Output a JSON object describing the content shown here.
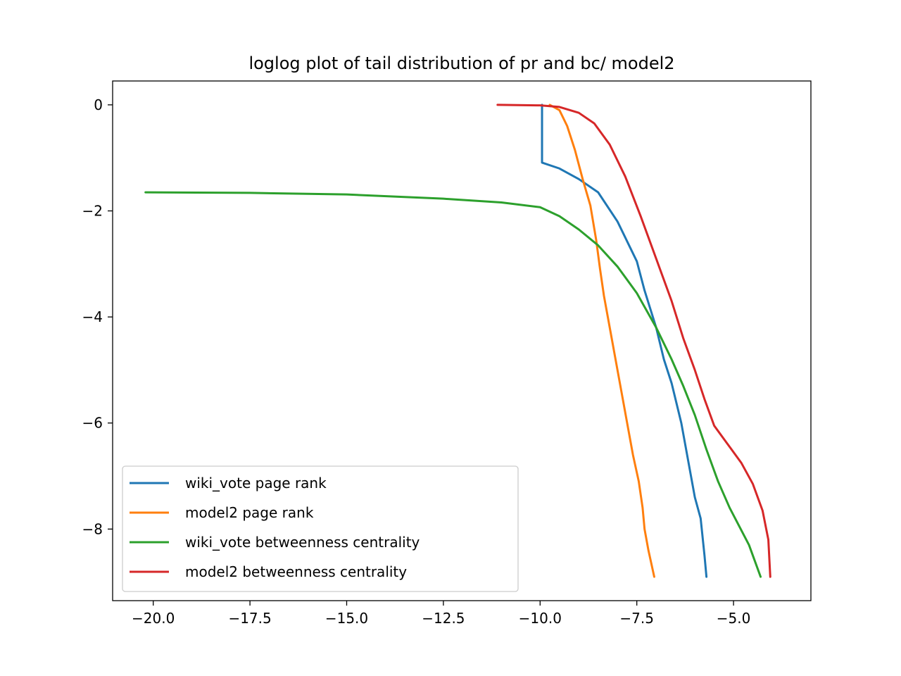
{
  "chart_data": {
    "type": "line",
    "title": "loglog plot of tail distribution of pr and bc/ model2",
    "xlabel": "",
    "ylabel": "",
    "xlim": [
      -21.05,
      -3.0
    ],
    "ylim": [
      -9.35,
      0.45
    ],
    "x_ticks": [
      -20.0,
      -17.5,
      -15.0,
      -12.5,
      -10.0,
      -7.5,
      -5.0
    ],
    "x_tick_labels": [
      "−20.0",
      "−17.5",
      "−15.0",
      "−12.5",
      "−10.0",
      "−7.5",
      "−5.0"
    ],
    "y_ticks": [
      0,
      -2,
      -4,
      -6,
      -8
    ],
    "y_tick_labels": [
      "0",
      "−2",
      "−4",
      "−6",
      "−8"
    ],
    "grid": false,
    "legend_position": "lower-left",
    "series": [
      {
        "name": "wiki_vote page rank",
        "color": "#1f77b4",
        "points": [
          [
            -9.95,
            0.0
          ],
          [
            -9.95,
            -0.5
          ],
          [
            -9.95,
            -1.09
          ],
          [
            -9.5,
            -1.2
          ],
          [
            -9.0,
            -1.4
          ],
          [
            -8.5,
            -1.65
          ],
          [
            -8.0,
            -2.2
          ],
          [
            -7.5,
            -2.95
          ],
          [
            -7.3,
            -3.5
          ],
          [
            -7.0,
            -4.2
          ],
          [
            -6.8,
            -4.8
          ],
          [
            -6.6,
            -5.25
          ],
          [
            -6.35,
            -6.0
          ],
          [
            -6.15,
            -6.8
          ],
          [
            -6.0,
            -7.4
          ],
          [
            -5.85,
            -7.8
          ],
          [
            -5.75,
            -8.5
          ],
          [
            -5.7,
            -8.9
          ]
        ]
      },
      {
        "name": "model2 page rank",
        "color": "#ff7f0e",
        "points": [
          [
            -9.75,
            0.0
          ],
          [
            -9.5,
            -0.1
          ],
          [
            -9.3,
            -0.4
          ],
          [
            -9.1,
            -0.85
          ],
          [
            -8.9,
            -1.4
          ],
          [
            -8.7,
            -1.9
          ],
          [
            -8.55,
            -2.55
          ],
          [
            -8.45,
            -3.1
          ],
          [
            -8.35,
            -3.6
          ],
          [
            -8.2,
            -4.2
          ],
          [
            -8.05,
            -4.8
          ],
          [
            -7.9,
            -5.4
          ],
          [
            -7.75,
            -6.0
          ],
          [
            -7.6,
            -6.6
          ],
          [
            -7.45,
            -7.1
          ],
          [
            -7.35,
            -7.6
          ],
          [
            -7.3,
            -8.0
          ],
          [
            -7.2,
            -8.4
          ],
          [
            -7.05,
            -8.9
          ]
        ]
      },
      {
        "name": "wiki_vote betweenness centrality",
        "color": "#2ca02c",
        "points": [
          [
            -20.2,
            -1.65
          ],
          [
            -17.5,
            -1.66
          ],
          [
            -15.0,
            -1.69
          ],
          [
            -12.5,
            -1.77
          ],
          [
            -11.0,
            -1.84
          ],
          [
            -10.0,
            -1.93
          ],
          [
            -9.5,
            -2.1
          ],
          [
            -9.0,
            -2.35
          ],
          [
            -8.5,
            -2.65
          ],
          [
            -8.0,
            -3.05
          ],
          [
            -7.5,
            -3.55
          ],
          [
            -7.0,
            -4.2
          ],
          [
            -6.6,
            -4.8
          ],
          [
            -6.3,
            -5.3
          ],
          [
            -6.0,
            -5.85
          ],
          [
            -5.7,
            -6.5
          ],
          [
            -5.4,
            -7.1
          ],
          [
            -5.1,
            -7.6
          ],
          [
            -4.6,
            -8.3
          ],
          [
            -4.3,
            -8.9
          ]
        ]
      },
      {
        "name": "model2 betweenness centrality",
        "color": "#d62728",
        "points": [
          [
            -11.1,
            0.0
          ],
          [
            -10.0,
            -0.01
          ],
          [
            -9.5,
            -0.04
          ],
          [
            -9.0,
            -0.15
          ],
          [
            -8.6,
            -0.35
          ],
          [
            -8.2,
            -0.75
          ],
          [
            -7.8,
            -1.35
          ],
          [
            -7.4,
            -2.1
          ],
          [
            -7.0,
            -2.9
          ],
          [
            -6.6,
            -3.7
          ],
          [
            -6.3,
            -4.4
          ],
          [
            -6.0,
            -5.0
          ],
          [
            -5.75,
            -5.55
          ],
          [
            -5.5,
            -6.05
          ],
          [
            -5.2,
            -6.35
          ],
          [
            -4.8,
            -6.75
          ],
          [
            -4.5,
            -7.15
          ],
          [
            -4.25,
            -7.65
          ],
          [
            -4.1,
            -8.2
          ],
          [
            -4.05,
            -8.9
          ]
        ]
      }
    ]
  }
}
